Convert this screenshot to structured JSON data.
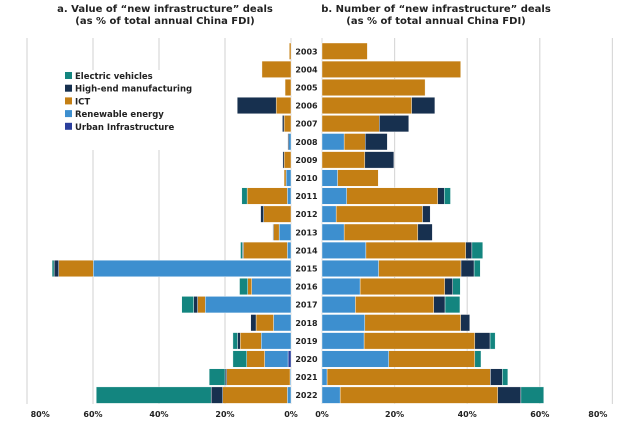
{
  "chart_data": [
    {
      "type": "bar",
      "orientation": "horizontal",
      "stacked": true,
      "direction": "leftward",
      "title": "a. Value of “new infrastructure” deals",
      "subtitle": "(as % of total annual China FDI)",
      "xlim": [
        0,
        80
      ],
      "xticks": [
        "80%",
        "60%",
        "40%",
        "20%",
        "0%"
      ],
      "tick_values": [
        80,
        60,
        40,
        20,
        0
      ],
      "grid": true,
      "legend_position": "upper-left",
      "categories": [
        "2003",
        "2004",
        "2005",
        "2006",
        "2007",
        "2008",
        "2009",
        "2010",
        "2011",
        "2012",
        "2013",
        "2014",
        "2015",
        "2016",
        "2017",
        "2018",
        "2019",
        "2020",
        "2021",
        "2022"
      ],
      "series": [
        {
          "name": "Urban Infrastructure",
          "color": "#2a3e9c",
          "values": [
            0,
            0,
            0,
            0,
            0,
            0,
            0,
            0,
            0,
            0,
            0,
            0,
            0,
            0,
            0,
            0,
            0,
            0.9,
            0,
            0
          ]
        },
        {
          "name": "Renewable energy",
          "color": "#3d8fcf",
          "values": [
            0,
            0,
            0,
            0,
            0,
            0.7,
            0,
            1.5,
            1.1,
            0,
            3.6,
            1.1,
            59.9,
            11.9,
            26,
            5.3,
            9,
            7.1,
            0.3,
            1.1
          ]
        },
        {
          "name": "ICT",
          "color": "#c47f14",
          "values": [
            0.5,
            8.8,
            1.8,
            4.5,
            2.1,
            0,
            2.1,
            0.6,
            12.2,
            8.3,
            1.7,
            13.3,
            10.5,
            1.2,
            2.3,
            5.3,
            6.4,
            5.4,
            19.2,
            19.6
          ]
        },
        {
          "name": "High-end manufacturing",
          "color": "#17304f",
          "values": [
            0,
            0,
            0,
            11.8,
            0.5,
            0.3,
            0.4,
            0,
            0,
            0.9,
            0.2,
            0.3,
            1.4,
            0,
            1.2,
            1.6,
            0.8,
            0,
            0.5,
            3.5
          ]
        },
        {
          "name": "Electric vehicles",
          "color": "#13857f",
          "values": [
            0,
            0,
            0,
            0,
            0,
            0,
            0,
            0,
            1.6,
            0,
            0,
            0.6,
            0.6,
            2.5,
            3.6,
            0,
            1.4,
            4.2,
            4.8,
            34.8
          ]
        }
      ]
    },
    {
      "type": "bar",
      "orientation": "horizontal",
      "stacked": true,
      "direction": "rightward",
      "title": "b. Number of “new infrastructure” deals",
      "subtitle": "(as % of total annual China FDI)",
      "xlim": [
        0,
        80
      ],
      "xticks": [
        "0%",
        "20%",
        "40%",
        "60%",
        "80%"
      ],
      "tick_values": [
        0,
        20,
        40,
        60,
        80
      ],
      "grid": true,
      "categories": [
        "2003",
        "2004",
        "2005",
        "2006",
        "2007",
        "2008",
        "2009",
        "2010",
        "2011",
        "2012",
        "2013",
        "2014",
        "2015",
        "2016",
        "2017",
        "2018",
        "2019",
        "2020",
        "2021",
        "2022"
      ],
      "series": [
        {
          "name": "Urban Infrastructure",
          "color": "#2a3e9c",
          "values": [
            0,
            0,
            0,
            0,
            0,
            0,
            0,
            0,
            0,
            0,
            0,
            0,
            0,
            0,
            0,
            0,
            0,
            0,
            0,
            0
          ]
        },
        {
          "name": "Renewable energy",
          "color": "#3d8fcf",
          "values": [
            0,
            0,
            0,
            0,
            0,
            6.1,
            0,
            4.3,
            6.8,
            3.9,
            6.1,
            12.1,
            15.6,
            10.5,
            9.2,
            11.8,
            11.6,
            18.4,
            1.4,
            5.0
          ]
        },
        {
          "name": "ICT",
          "color": "#c47f14",
          "values": [
            12.5,
            38.2,
            28.4,
            24.7,
            15.8,
            5.8,
            11.8,
            11.2,
            25.1,
            23.8,
            20.3,
            27.5,
            22.7,
            23.3,
            21.6,
            26.4,
            30.5,
            23.7,
            45,
            43.4
          ]
        },
        {
          "name": "High-end manufacturing",
          "color": "#17304f",
          "values": [
            0,
            0,
            0,
            6.4,
            8.1,
            6.1,
            8.0,
            0,
            1.8,
            2.1,
            4.0,
            1.7,
            3.6,
            2.2,
            3.1,
            2.5,
            4.2,
            0,
            3.3,
            6.4
          ]
        },
        {
          "name": "Electric vehicles",
          "color": "#13857f",
          "values": [
            0,
            0,
            0,
            0,
            0,
            0,
            0,
            0,
            1.7,
            0,
            0,
            3.0,
            1.7,
            2.1,
            4.1,
            0,
            1.4,
            1.7,
            1.5,
            6.3
          ]
        }
      ]
    }
  ],
  "legend": [
    {
      "label": "Electric vehicles",
      "color": "#13857f"
    },
    {
      "label": "High-end manufacturing",
      "color": "#17304f"
    },
    {
      "label": "ICT",
      "color": "#c47f14"
    },
    {
      "label": "Renewable energy",
      "color": "#3d8fcf"
    },
    {
      "label": "Urban Infrastructure",
      "color": "#2a3e9c"
    }
  ]
}
